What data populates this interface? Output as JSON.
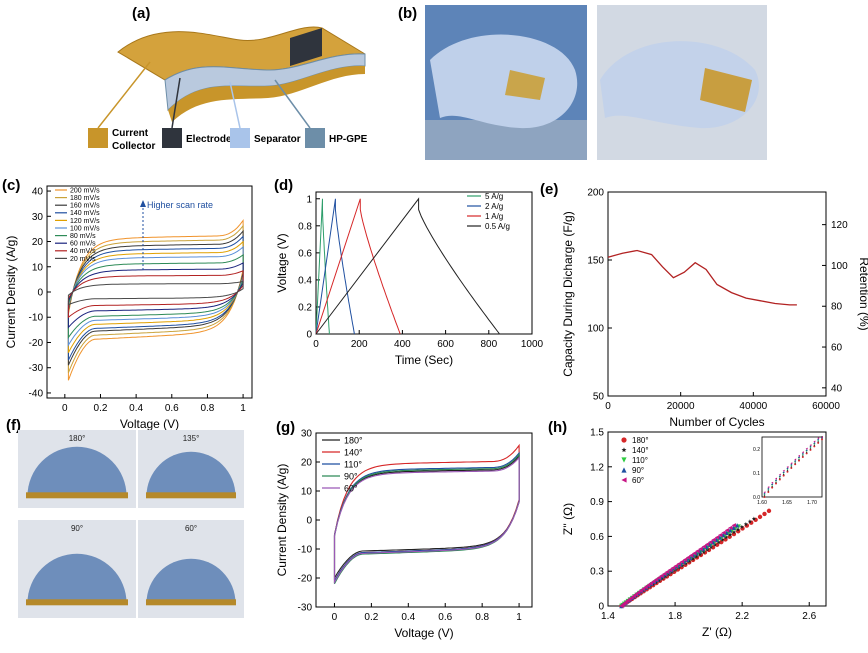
{
  "panels": {
    "a": {
      "label": "(a)",
      "legend": [
        {
          "name": "Current Collector",
          "line1": "Current",
          "line2": "Collector",
          "color": "#c8952a"
        },
        {
          "name": "Electrode",
          "line1": "Electrode",
          "line2": "",
          "color": "#2f343d"
        },
        {
          "name": "Separator",
          "line1": "Separator",
          "line2": "",
          "color": "#a9c4ea"
        },
        {
          "name": "HP-GPE",
          "line1": "HP-GPE",
          "line2": "",
          "color": "#6d8ea8"
        }
      ]
    },
    "b": {
      "label": "(b)"
    },
    "f": {
      "label": "(f)",
      "angles": [
        "180°",
        "135°",
        "90°",
        "60°"
      ]
    },
    "c_label": "(c)",
    "d_label": "(d)",
    "e_label": "(e)",
    "g_label": "(g)",
    "h_label": "(h)"
  },
  "chart_data": [
    {
      "id": "c",
      "type": "line",
      "xlabel": "Voltage (V)",
      "ylabel": "Current Density (A/g)",
      "xlim": [
        -0.1,
        1.05
      ],
      "ylim": [
        -42,
        42
      ],
      "xticks": [
        0.0,
        0.2,
        0.4,
        0.6,
        0.8,
        1.0
      ],
      "yticks": [
        -40,
        -30,
        -20,
        -10,
        0,
        10,
        20,
        30,
        40
      ],
      "annotation": "Higher scan rate",
      "legend": "top-left",
      "series": [
        {
          "name": "200 mV/s",
          "color": "#f0932b",
          "upper": 27,
          "lower": -35
        },
        {
          "name": "180 mV/s",
          "color": "#c9a23a",
          "upper": 25,
          "lower": -32
        },
        {
          "name": "160 mV/s",
          "color": "#3a3a3a",
          "upper": 23,
          "lower": -29
        },
        {
          "name": "140 mV/s",
          "color": "#1f4fa0",
          "upper": 21,
          "lower": -27
        },
        {
          "name": "120 mV/s",
          "color": "#e0a000",
          "upper": 19,
          "lower": -24
        },
        {
          "name": "100 mV/s",
          "color": "#5a8fd8",
          "upper": 17,
          "lower": -21
        },
        {
          "name": "80 mV/s",
          "color": "#2e8b57",
          "upper": 14,
          "lower": -18
        },
        {
          "name": "60 mV/s",
          "color": "#1a237e",
          "upper": 11,
          "lower": -14
        },
        {
          "name": "40 mV/s",
          "color": "#b22222",
          "upper": 8,
          "lower": -10
        },
        {
          "name": "20 mV/s",
          "color": "#4a4a4a",
          "upper": 4,
          "lower": -5
        }
      ]
    },
    {
      "id": "d",
      "type": "line",
      "xlabel": "Time (Sec)",
      "ylabel": "Voltage (V)",
      "xlim": [
        0,
        1000
      ],
      "ylim": [
        0,
        1.05
      ],
      "xticks": [
        0,
        200,
        400,
        600,
        800,
        1000
      ],
      "yticks": [
        0.0,
        0.2,
        0.4,
        0.6,
        0.8,
        1.0
      ],
      "legend": "top-right",
      "series": [
        {
          "name": "5 A/g",
          "color": "#2e9e6b",
          "peak": 30,
          "end": 62
        },
        {
          "name": "2 A/g",
          "color": "#1f4fa0",
          "peak": 90,
          "end": 178
        },
        {
          "name": "1 A/g",
          "color": "#d62728",
          "peak": 205,
          "end": 390
        },
        {
          "name": "0.5 A/g",
          "color": "#222222",
          "peak": 475,
          "end": 850
        }
      ]
    },
    {
      "id": "e",
      "type": "line",
      "xlabel": "Number of Cycles",
      "ylabel": "Capacity During Dicharge (F/g)",
      "y2label": "Retention (%)",
      "xlim": [
        0,
        60000
      ],
      "ylim": [
        50,
        200
      ],
      "y2lim": [
        36,
        136
      ],
      "xticks": [
        0,
        20000,
        40000,
        60000
      ],
      "yticks": [
        50,
        100,
        150,
        200
      ],
      "y2ticks": [
        40,
        60,
        80,
        100,
        120
      ],
      "series": [
        {
          "name": "capacity",
          "color": "#b22222",
          "x": [
            0,
            4000,
            8000,
            12000,
            15000,
            18000,
            21000,
            24000,
            27000,
            30000,
            34000,
            38000,
            42000,
            46000,
            50000,
            52000
          ],
          "y": [
            152,
            155,
            157,
            154,
            145,
            137,
            141,
            148,
            143,
            132,
            126,
            122,
            120,
            118,
            117,
            117
          ]
        }
      ]
    },
    {
      "id": "g",
      "type": "line",
      "xlabel": "Voltage (V)",
      "ylabel": "Current Density (A/g)",
      "xlim": [
        -0.1,
        1.07
      ],
      "ylim": [
        -30,
        30
      ],
      "xticks": [
        0.0,
        0.2,
        0.4,
        0.6,
        0.8,
        1.0
      ],
      "yticks": [
        -30,
        -20,
        -10,
        0,
        10,
        20,
        30
      ],
      "legend": "top-left",
      "series": [
        {
          "name": "180°",
          "color": "#222222",
          "upper": 21,
          "lower": -20
        },
        {
          "name": "140°",
          "color": "#d62728",
          "upper": 24.5,
          "lower": -21
        },
        {
          "name": "110°",
          "color": "#1f4fa0",
          "upper": 22,
          "lower": -21
        },
        {
          "name": "90°",
          "color": "#2e8b57",
          "upper": 21.5,
          "lower": -22
        },
        {
          "name": "60°",
          "color": "#9b59b6",
          "upper": 20.5,
          "lower": -21.5
        }
      ]
    },
    {
      "id": "h",
      "type": "scatter",
      "xlabel": "Z' (Ω)",
      "ylabel": "Z'' (Ω)",
      "xlim": [
        1.4,
        2.7
      ],
      "ylim": [
        0,
        1.5
      ],
      "xticks": [
        1.4,
        1.8,
        2.2,
        2.6
      ],
      "yticks": [
        0.0,
        0.3,
        0.6,
        0.9,
        1.2,
        1.5
      ],
      "legend": "top-left",
      "inset": {
        "xlim": [
          1.6,
          1.72
        ],
        "ylim": [
          0,
          0.25
        ],
        "xticks": [
          1.6,
          1.65,
          1.7
        ],
        "yticks": [
          0.0,
          0.1,
          0.2
        ]
      },
      "series": [
        {
          "name": "180°",
          "color": "#d62728",
          "marker": "circle"
        },
        {
          "name": "140°",
          "color": "#222222",
          "marker": "star"
        },
        {
          "name": "110°",
          "color": "#2ecc40",
          "marker": "tri-down"
        },
        {
          "name": "90°",
          "color": "#1f4fa0",
          "marker": "tri-up"
        },
        {
          "name": "60°",
          "color": "#c71585",
          "marker": "tri-left"
        }
      ]
    }
  ]
}
